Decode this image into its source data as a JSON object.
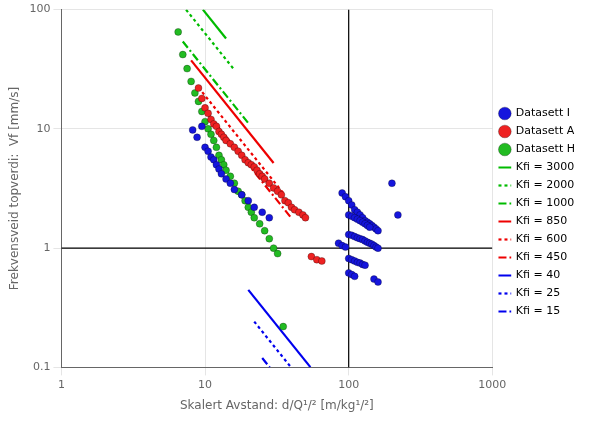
{
  "chart_data": {
    "type": "scatter",
    "xlabel": "Skalert Avstand: d/Q¹/² [m/kg¹/²]",
    "ylabel": "Frekvensveid topverdi:  Vf [mm/s]",
    "log": true,
    "xlim": [
      1,
      1000
    ],
    "ylim": [
      0.1,
      100
    ],
    "xticks": [
      1,
      10,
      100,
      1000
    ],
    "yticks": [
      0.1,
      1,
      10,
      100
    ],
    "grid": true,
    "legend": "right",
    "annotations": [
      {
        "type": "vline",
        "value": 100.0,
        "color": "#000000"
      },
      {
        "type": "hline",
        "value": 1.0,
        "color": "#000000"
      }
    ],
    "series": [
      {
        "name": "Datasett I",
        "color": "#1515dd",
        "marker": "circle",
        "x": [
          8.2,
          8.8,
          9.5,
          10.0,
          10.5,
          11.0,
          11.5,
          12.0,
          12.5,
          13.0,
          14.0,
          15.0,
          16.0,
          18.0,
          20.0,
          22.0,
          25.0,
          28.0,
          90.0,
          95.0,
          100.0,
          105.0,
          110.0,
          115.0,
          120.0,
          125.0,
          130.0,
          135.0,
          140.0,
          145.0,
          150.0,
          155.0,
          160.0,
          100.0,
          105.0,
          110.0,
          115.0,
          120.0,
          125.0,
          130.0,
          135.0,
          140.0,
          100.0,
          105.0,
          110.0,
          115.0,
          120.0,
          125.0,
          130.0,
          135.0,
          140.0,
          145.0,
          150.0,
          155.0,
          160.0,
          85.0,
          90.0,
          95.0,
          100.0,
          105.0,
          110.0,
          115.0,
          120.0,
          125.0,
          130.0,
          100.0,
          105.0,
          110.0,
          150.0,
          160.0,
          200.0,
          220.0
        ],
        "values": [
          9.8,
          8.5,
          10.5,
          7.0,
          6.5,
          5.8,
          5.5,
          5.0,
          4.6,
          4.2,
          3.8,
          3.5,
          3.1,
          2.8,
          2.5,
          2.2,
          2.0,
          1.8,
          2.9,
          2.7,
          2.5,
          2.3,
          2.1,
          2.0,
          1.9,
          1.8,
          1.7,
          1.65,
          1.6,
          1.55,
          1.5,
          1.45,
          1.4,
          1.9,
          1.85,
          1.8,
          1.75,
          1.7,
          1.65,
          1.6,
          1.55,
          1.5,
          1.3,
          1.28,
          1.25,
          1.22,
          1.2,
          1.18,
          1.15,
          1.12,
          1.1,
          1.08,
          1.05,
          1.02,
          1.0,
          1.1,
          1.05,
          1.02,
          0.82,
          0.8,
          0.78,
          0.76,
          0.75,
          0.73,
          0.72,
          0.62,
          0.6,
          0.58,
          0.55,
          0.52,
          3.5,
          1.9
        ]
      },
      {
        "name": "Datasett A",
        "color": "#ee2222",
        "marker": "circle",
        "x": [
          9.0,
          9.5,
          10.0,
          10.5,
          11.0,
          11.5,
          12.0,
          12.5,
          13.0,
          13.5,
          14.0,
          15.0,
          16.0,
          17.0,
          18.0,
          19.0,
          20.0,
          21.0,
          22.0,
          23.0,
          24.0,
          25.0,
          26.0,
          28.0,
          30.0,
          32.0,
          34.0,
          36.0,
          38.0,
          40.0,
          42.0,
          45.0,
          48.0,
          50.0,
          55.0,
          60.0,
          65.0
        ],
        "values": [
          22.0,
          18.0,
          15.0,
          13.5,
          12.0,
          11.0,
          10.5,
          9.5,
          9.0,
          8.5,
          8.0,
          7.5,
          7.0,
          6.5,
          6.0,
          5.5,
          5.2,
          5.0,
          4.8,
          4.5,
          4.2,
          4.0,
          3.8,
          3.5,
          3.2,
          3.0,
          2.8,
          2.5,
          2.4,
          2.2,
          2.1,
          2.0,
          1.9,
          1.8,
          0.85,
          0.8,
          0.78
        ]
      },
      {
        "name": "Datasett H",
        "color": "#22bb22",
        "marker": "circle",
        "x": [
          6.5,
          7.0,
          7.5,
          8.0,
          8.5,
          9.0,
          9.5,
          10.0,
          10.5,
          11.0,
          11.5,
          12.0,
          12.5,
          13.0,
          13.5,
          14.0,
          15.0,
          16.0,
          17.0,
          18.0,
          19.0,
          20.0,
          21.0,
          22.0,
          24.0,
          26.0,
          28.0,
          30.0,
          32.0,
          35.0
        ],
        "values": [
          65.0,
          42.0,
          32.0,
          25.0,
          20.0,
          17.0,
          14.0,
          11.5,
          10.0,
          9.0,
          8.0,
          7.0,
          6.0,
          5.5,
          5.0,
          4.5,
          4.0,
          3.5,
          3.0,
          2.8,
          2.5,
          2.2,
          2.0,
          1.8,
          1.6,
          1.4,
          1.2,
          1.0,
          0.9,
          0.22
        ]
      },
      {
        "name": "Kfi = 3000",
        "type": "line",
        "color": "#00bb00",
        "line_style": "solid",
        "x": [
          9.661,
          14.0
        ],
        "values": [
          99.9,
          57.2703
        ]
      },
      {
        "name": "Kfi = 2000",
        "type": "line",
        "color": "#00bb00",
        "line_style": "dotted",
        "x": [
          7.38,
          16.0
        ],
        "values": [
          99.76,
          31.25
        ]
      },
      {
        "name": "Kfi = 1000",
        "type": "line",
        "color": "#00bb00",
        "line_style": "dashdot",
        "x": [
          7.0,
          20.0
        ],
        "values": [
          53.9949,
          11.1803
        ]
      },
      {
        "name": "Kfi = 850",
        "type": "line",
        "color": "#ee0000",
        "line_style": "solid",
        "x": [
          8.0,
          30.0
        ],
        "values": [
          37.5651,
          5.17293
        ]
      },
      {
        "name": "Kfi = 600",
        "type": "line",
        "color": "#ee0000",
        "line_style": "dotted",
        "x": [
          9.0,
          35.0
        ],
        "values": [
          22.2222,
          2.89767
        ]
      },
      {
        "name": "Kfi = 450",
        "type": "line",
        "color": "#ee0000",
        "line_style": "dashdot",
        "x": [
          10.0,
          40.0
        ],
        "values": [
          14.2302,
          1.77878
        ]
      },
      {
        "name": "Kfi = 40",
        "type": "line",
        "color": "#0000ee",
        "line_style": "solid",
        "x": [
          20.0,
          54.1
        ],
        "values": [
          0.447214,
          0.1005
        ]
      },
      {
        "name": "Kfi = 25",
        "type": "line",
        "color": "#0000ee",
        "line_style": "dotted",
        "x": [
          22.0,
          39.67
        ],
        "values": [
          0.242274,
          0.1001
        ]
      },
      {
        "name": "Kfi = 15",
        "type": "line",
        "color": "#0000ee",
        "line_style": "dashdot",
        "x": [
          25.0,
          28.19
        ],
        "values": [
          0.12,
          0.1002
        ]
      }
    ]
  }
}
